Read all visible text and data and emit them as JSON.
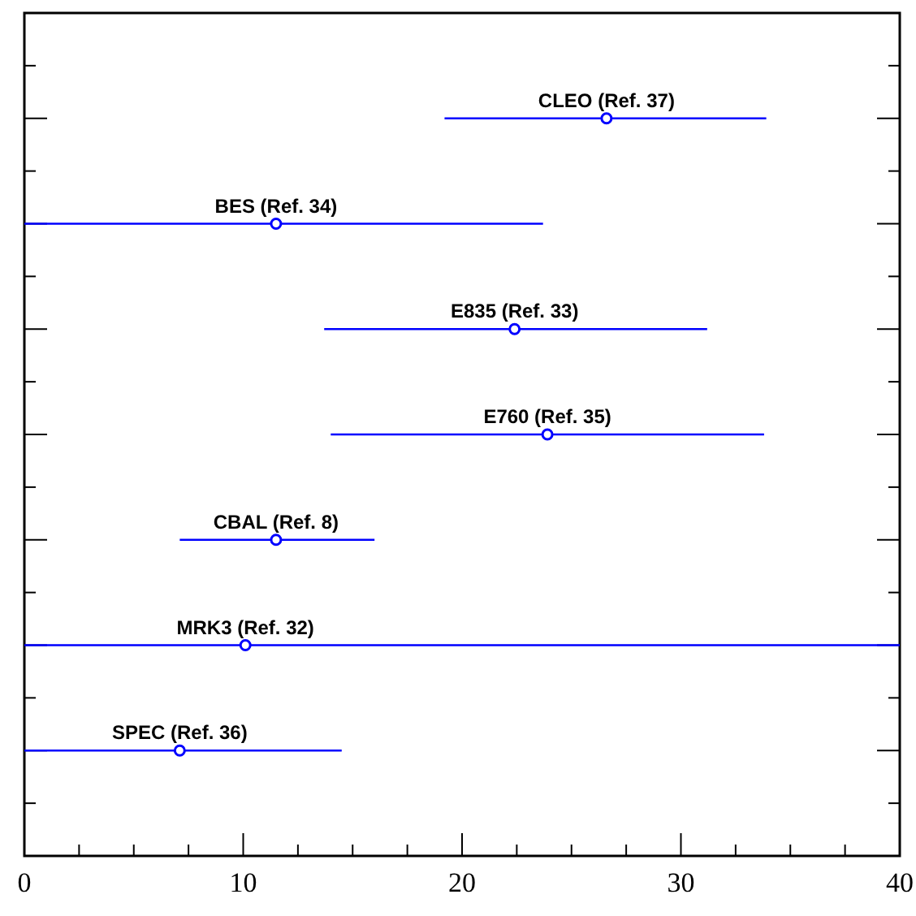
{
  "chart_data": {
    "type": "scatter",
    "orientation": "horizontal",
    "marker": "circle",
    "grid": false,
    "tick_labels": "x",
    "categories": [
      "CLEO (Ref. 37)",
      "BES (Ref. 34)",
      "E835 (Ref. 33)",
      "E760 (Ref. 35)",
      "CBAL (Ref. 8)",
      "MRK3 (Ref. 32)",
      "SPEC (Ref. 36)"
    ],
    "series": [
      {
        "color": "#0000ff",
        "values": [
          26.6,
          11.5,
          22.4,
          23.9,
          11.5,
          10.1,
          7.1
        ],
        "errors": [
          [
            19.2,
            33.9
          ],
          [
            0,
            23.7
          ],
          [
            13.7,
            31.2
          ],
          [
            14.0,
            33.8
          ],
          [
            7.1,
            16.0
          ],
          [
            0,
            40
          ],
          [
            0,
            14.5
          ]
        ]
      }
    ],
    "xlim": [
      0,
      40
    ],
    "xticks": [
      0,
      {
        "value": 2.5,
        "label": null
      },
      {
        "value": 5,
        "label": null
      },
      {
        "value": 7.5,
        "label": null
      },
      10,
      {
        "value": 12.5,
        "label": null
      },
      {
        "value": 15,
        "label": null
      },
      {
        "value": 17.5,
        "label": null
      },
      20,
      {
        "value": 22.5,
        "label": null
      },
      {
        "value": 25,
        "label": null
      },
      {
        "value": 27.5,
        "label": null
      },
      30,
      {
        "value": 32.5,
        "label": null
      },
      {
        "value": 35,
        "label": null
      },
      {
        "value": 37.5,
        "label": null
      },
      40
    ]
  }
}
